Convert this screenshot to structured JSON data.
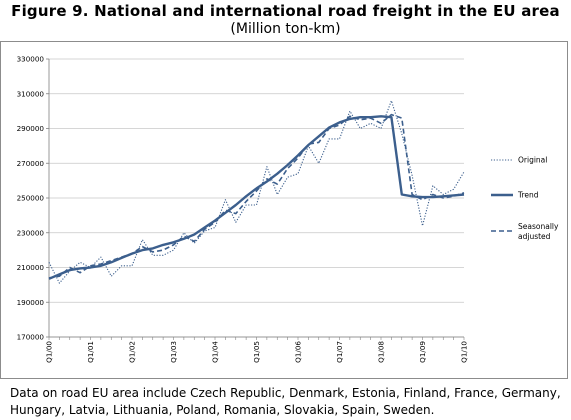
{
  "title": "Figure 9.  National and international road freight in the EU area",
  "subtitle": "(Million ton-km)",
  "note": "Data on road EU area include Czech Republic, Denmark, Estonia, Finland, France, Germany, Hungary, Latvia, Lithuania, Poland, Romania, Slovakia, Spain, Sweden.",
  "colors": {
    "series": "#3c5f8d",
    "grid": "#c8c8c8",
    "axis": "#808080"
  },
  "chart_data": {
    "type": "line",
    "title": "Figure 9.  National and international road freight in the EU area",
    "subtitle": "(Million ton-km)",
    "ylim": [
      170000,
      330000
    ],
    "yticks": [
      170000,
      190000,
      210000,
      230000,
      250000,
      270000,
      290000,
      310000,
      330000
    ],
    "ytick_labels": [
      "170000",
      "190000",
      "210000",
      "230000",
      "250000",
      "270000",
      "290000",
      "310000",
      "330000"
    ],
    "x_tick_labels": [
      "Q1/00",
      "Q1/01",
      "Q1/02",
      "Q1/03",
      "Q1/04",
      "Q1/05",
      "Q1/06",
      "Q1/07",
      "Q1/08",
      "Q1/09",
      "Q1/10"
    ],
    "x_tick_positions": [
      0,
      4,
      8,
      12,
      16,
      20,
      24,
      28,
      32,
      36,
      40
    ],
    "x_range": [
      0,
      40
    ],
    "grid": true,
    "legend_position": "right",
    "series": [
      {
        "name": "Original",
        "style": "dotted",
        "x": [
          0,
          1,
          2,
          3,
          4,
          5,
          6,
          7,
          8,
          9,
          10,
          11,
          12,
          13,
          14,
          15,
          16,
          17,
          18,
          19,
          20,
          21,
          22,
          23,
          24,
          25,
          26,
          27,
          28,
          29,
          30,
          31,
          32,
          33,
          34,
          35,
          36,
          37,
          38,
          39,
          40
        ],
        "values": [
          213000,
          201000,
          208000,
          213000,
          210000,
          216000,
          205000,
          211000,
          211000,
          226000,
          217000,
          217000,
          220000,
          230000,
          224000,
          231000,
          233000,
          249000,
          236000,
          246000,
          246000,
          268000,
          252000,
          262000,
          264000,
          280000,
          270000,
          284000,
          284000,
          300000,
          290000,
          293000,
          290000,
          306000,
          287000,
          263000,
          234000,
          257000,
          252000,
          255000,
          265000
        ]
      },
      {
        "name": "Trend",
        "style": "solid",
        "x": [
          0,
          1,
          2,
          3,
          4,
          5,
          6,
          7,
          8,
          9,
          10,
          11,
          12,
          13,
          14,
          15,
          16,
          17,
          18,
          19,
          20,
          21,
          22,
          23,
          24,
          25,
          26,
          27,
          28,
          29,
          30,
          31,
          32,
          33,
          34,
          35,
          36,
          37,
          38,
          39,
          40
        ],
        "values": [
          203500,
          206000,
          208500,
          209500,
          210000,
          211000,
          213000,
          215500,
          218000,
          220000,
          221000,
          223000,
          224500,
          226500,
          229000,
          233000,
          237000,
          241500,
          246000,
          251000,
          255500,
          259500,
          264000,
          269000,
          274500,
          280500,
          285500,
          290500,
          293500,
          295500,
          296500,
          296500,
          297000,
          296500,
          252000,
          251000,
          250500,
          250500,
          251000,
          251500,
          252000
        ]
      },
      {
        "name": "Seasonally adjusted",
        "style": "dashed",
        "x": [
          0,
          1,
          2,
          3,
          4,
          5,
          6,
          7,
          8,
          9,
          10,
          11,
          12,
          13,
          14,
          15,
          16,
          17,
          18,
          19,
          20,
          21,
          22,
          23,
          24,
          25,
          26,
          27,
          28,
          29,
          30,
          31,
          32,
          33,
          34,
          35,
          36,
          37,
          38,
          39,
          40
        ],
        "values": [
          204000,
          205000,
          210000,
          207000,
          211000,
          212000,
          214000,
          216000,
          218000,
          222000,
          219000,
          220000,
          223000,
          228000,
          225000,
          232000,
          236000,
          243000,
          241000,
          248000,
          254000,
          261000,
          258000,
          267000,
          273000,
          281000,
          282000,
          290000,
          292000,
          297000,
          295000,
          296000,
          293000,
          298000,
          296000,
          252000,
          249000,
          252000,
          250000,
          251000,
          253000
        ]
      }
    ]
  }
}
